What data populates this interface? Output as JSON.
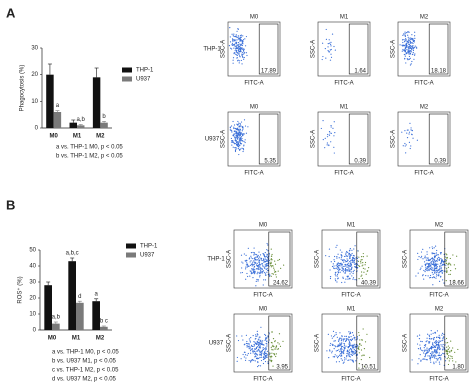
{
  "panel_labels": [
    "A",
    "B"
  ],
  "chart_data": [
    {
      "type": "bar",
      "y_label": "Phagocytosis (%)",
      "categories": [
        "M0",
        "M1",
        "M2"
      ],
      "series": [
        {
          "name": "THP-1",
          "color": "#111111",
          "values": [
            20,
            2,
            19
          ],
          "errors": [
            4,
            1,
            3.5
          ],
          "annotations": [
            null,
            null,
            null
          ]
        },
        {
          "name": "U937",
          "color": "#7a7a7a",
          "values": [
            6,
            1,
            2
          ],
          "errors": [
            0.5,
            0.3,
            0.5
          ],
          "annotations": [
            "a",
            "a,b",
            "b"
          ]
        }
      ],
      "ylim": [
        0,
        30
      ],
      "yticks": [
        0,
        10,
        20,
        30
      ],
      "notes": [
        "a vs. THP-1 M0, p < 0.05",
        "b vs. THP-1 M2, p < 0.05"
      ]
    },
    {
      "type": "bar",
      "y_label": "ROS⁺ (%)",
      "categories": [
        "M0",
        "M1",
        "M2"
      ],
      "series": [
        {
          "name": "THP-1",
          "color": "#111111",
          "values": [
            28,
            43,
            18
          ],
          "errors": [
            2,
            2,
            1.5
          ],
          "annotations": [
            null,
            "a,b,c",
            "a"
          ]
        },
        {
          "name": "U937",
          "color": "#7a7a7a",
          "values": [
            4,
            17,
            2
          ],
          "errors": [
            1,
            1,
            0.5
          ],
          "annotations": [
            "a,b",
            "d",
            "b c"
          ]
        }
      ],
      "ylim": [
        0,
        50
      ],
      "yticks": [
        0,
        10,
        20,
        30,
        40,
        50
      ],
      "notes": [
        "a vs. THP-1 M0, p < 0.05",
        "b vs. U937 M1, p < 0.05",
        "c vs. THP-1 M2, p < 0.05",
        "d vs. U937 M2, p < 0.05"
      ]
    }
  ],
  "flow_panels": [
    {
      "columns": [
        "M0",
        "M1",
        "M2"
      ],
      "x_label": "FITC-A",
      "y_label": "SSC-A",
      "rows": [
        {
          "label": "THP-1",
          "gates": [
            "17.89",
            "1.64",
            "18.18"
          ]
        },
        {
          "label": "U937",
          "gates": [
            "5.35",
            "0.39",
            "0.39"
          ]
        }
      ]
    },
    {
      "columns": [
        "M0",
        "M1",
        "M2"
      ],
      "x_label": "FITC-A",
      "y_label": "SSC-A",
      "rows": [
        {
          "label": "THP-1",
          "gates": [
            "24.62",
            "40.39",
            "18.66"
          ]
        },
        {
          "label": "U937",
          "gates": [
            "3.95",
            "10.51",
            "1.80"
          ]
        }
      ]
    }
  ]
}
